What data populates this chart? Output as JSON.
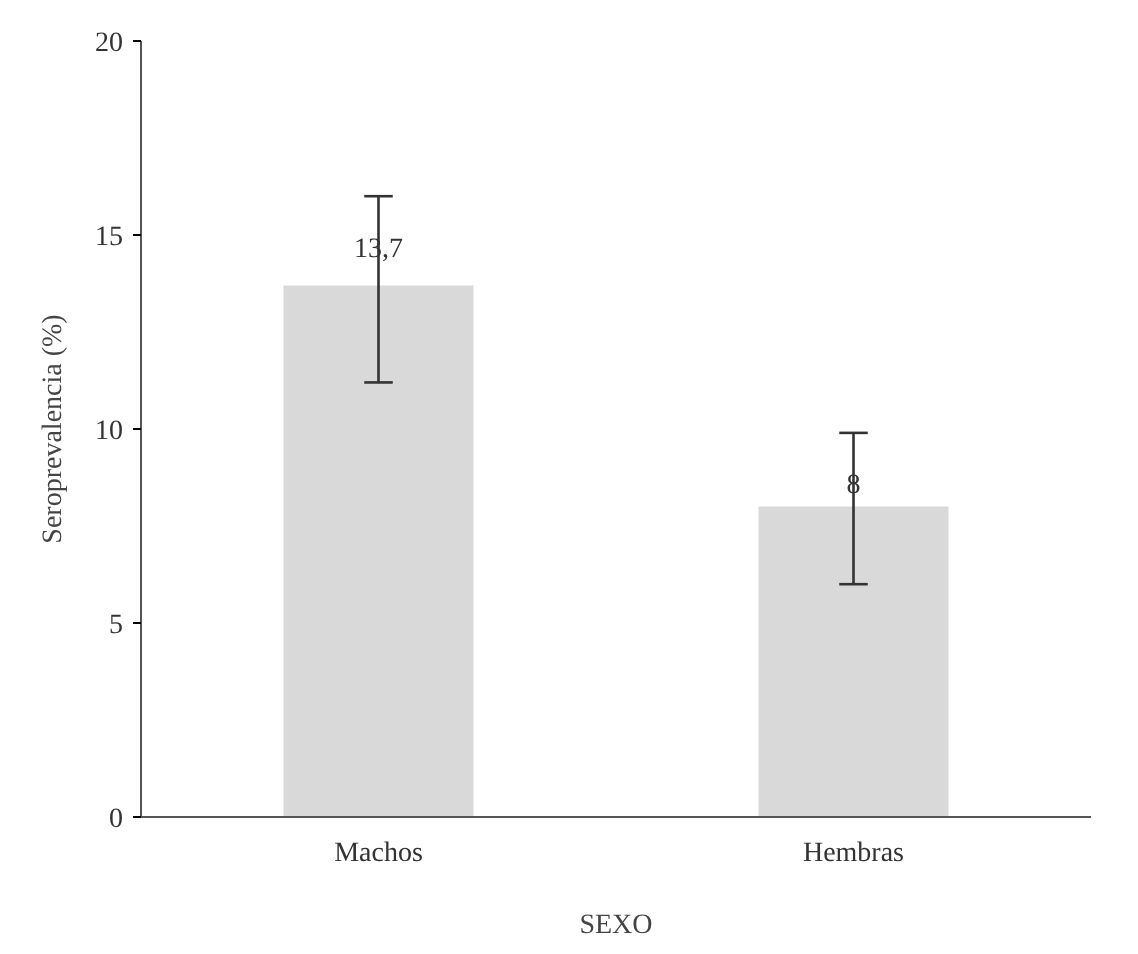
{
  "chart_data": {
    "type": "bar",
    "xlabel": "SEXO",
    "ylabel": "Seroprevalencia (%)",
    "categories": [
      "Machos",
      "Hembras"
    ],
    "values": [
      13.7,
      8
    ],
    "value_labels": [
      "13,7",
      "8"
    ],
    "errors": [
      [
        11.2,
        16.0
      ],
      [
        6.0,
        9.9
      ]
    ],
    "color": "#d9d9d9",
    "ylim": [
      0,
      20
    ],
    "yticks": [
      0,
      5,
      10,
      15,
      20
    ],
    "grid": false
  }
}
